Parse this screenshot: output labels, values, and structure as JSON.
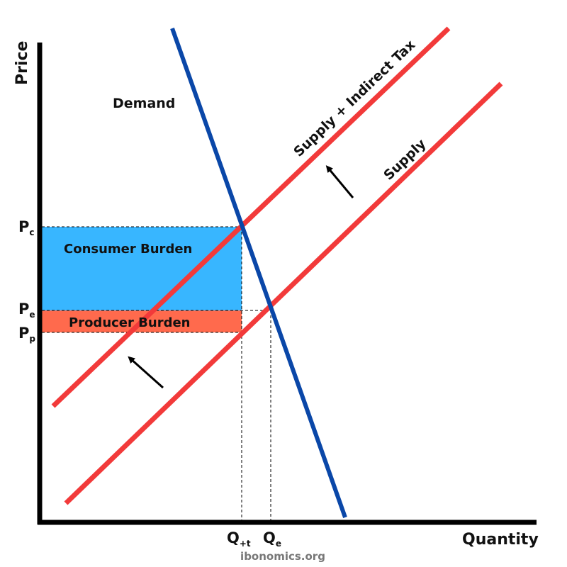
{
  "axes": {
    "y_title": "Price",
    "x_title": "Quantity"
  },
  "curves": {
    "demand": "Demand",
    "supply": "Supply",
    "supply_tax": "Supply + Indirect Tax"
  },
  "areas": {
    "consumer": "Consumer Burden",
    "producer": "Producer Burden"
  },
  "price_ticks": {
    "pc": {
      "main": "P",
      "sub": "c"
    },
    "pe": {
      "main": "P",
      "sub": "e"
    },
    "pp": {
      "main": "P",
      "sub": "p"
    }
  },
  "quantity_ticks": {
    "qt": {
      "main": "Q",
      "sub": "+t"
    },
    "qe": {
      "main": "Q",
      "sub": "e"
    }
  },
  "credit": "ibonomics.org",
  "colors": {
    "demand": "#0a47a8",
    "supply": "#f23a3a",
    "consumer_area": "#38b6ff",
    "producer_area": "#ff6a4d",
    "axis": "#000000"
  },
  "arrows": {
    "supply_shift_direction": "up-left"
  }
}
